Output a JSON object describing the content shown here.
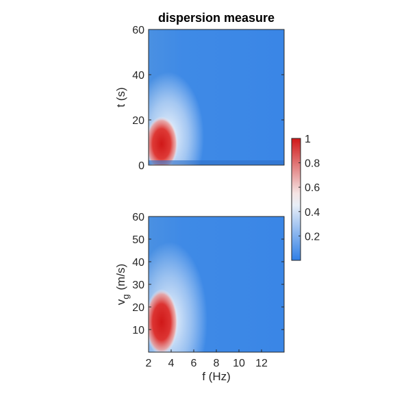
{
  "chart_data": [
    {
      "type": "heatmap",
      "title": "dispersion measure",
      "xlabel": "",
      "ylabel": "t (s)",
      "xlim": [
        2,
        14
      ],
      "ylim": [
        0,
        60
      ],
      "yticks": [
        0,
        20,
        40,
        60
      ],
      "xticks": [],
      "peak": {
        "x": 2.9,
        "y": 7,
        "value": 1
      },
      "grid": false
    },
    {
      "type": "heatmap",
      "title": "",
      "xlabel": "f (Hz)",
      "ylabel": "v",
      "ylabel_subscript": "g",
      "ylabel_units": "(m/s)",
      "xlim": [
        2,
        14
      ],
      "ylim": [
        0,
        60
      ],
      "xticks": [
        2,
        4,
        6,
        8,
        10,
        12
      ],
      "yticks": [
        10,
        20,
        30,
        40,
        50,
        60
      ],
      "peak": {
        "x": 2.9,
        "y": 14,
        "value": 1
      },
      "grid": false
    }
  ],
  "colorbar": {
    "range": [
      0,
      1
    ],
    "ticks": [
      "0.2",
      "0.4",
      "0.6",
      "0.8",
      "1"
    ],
    "tick_values": [
      0.2,
      0.4,
      0.6,
      0.8,
      1
    ],
    "colormap": [
      "#3a88e6",
      "#ffffff",
      "#d42020"
    ]
  }
}
